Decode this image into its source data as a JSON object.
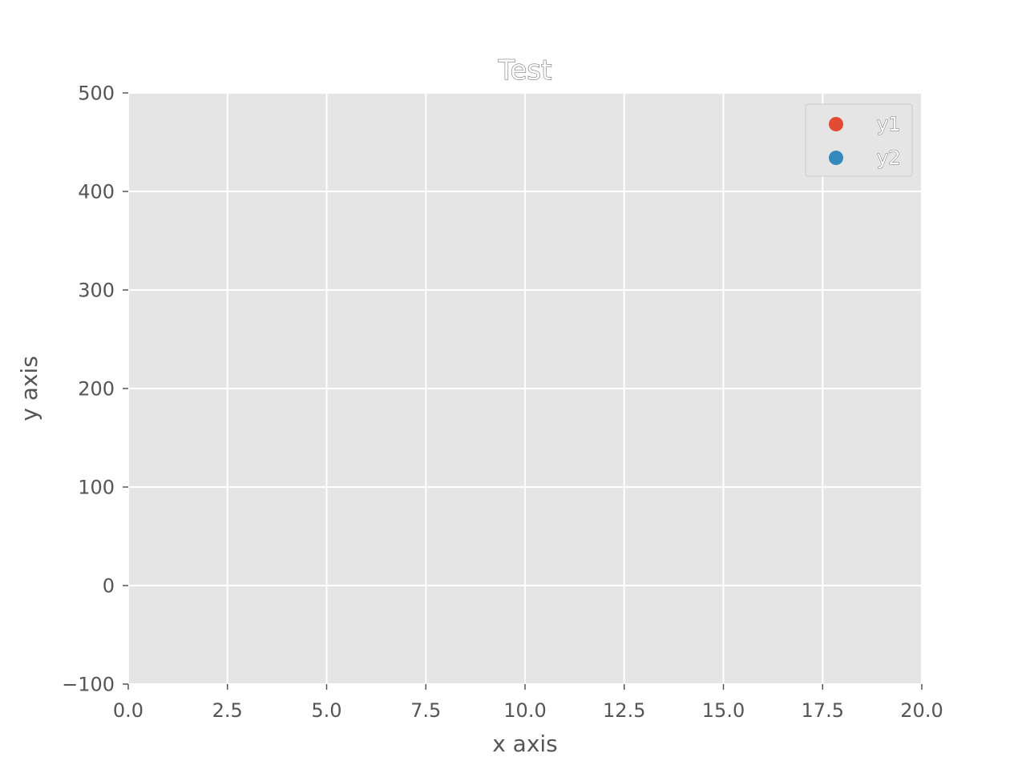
{
  "chart_data": {
    "type": "scatter",
    "title": "Test",
    "xlabel": "x axis",
    "ylabel": "y axis",
    "xlim": [
      0,
      20
    ],
    "ylim": [
      -100,
      500
    ],
    "x_ticks": [
      0,
      2.5,
      5,
      7.5,
      10,
      12.5,
      15,
      17.5,
      20
    ],
    "x_tick_labels": [
      "0.0",
      "2.5",
      "5.0",
      "7.5",
      "10.0",
      "12.5",
      "15.0",
      "17.5",
      "20.0"
    ],
    "y_ticks": [
      -100,
      0,
      100,
      200,
      300,
      400,
      500
    ],
    "y_tick_labels": [
      "−100",
      "0",
      "100",
      "200",
      "300",
      "400",
      "500"
    ],
    "grid": true,
    "legend_position": "top-right",
    "series": [
      {
        "name": "y1",
        "color": "#E24A33",
        "points": []
      },
      {
        "name": "y2",
        "color": "#348ABD",
        "points": []
      }
    ]
  }
}
